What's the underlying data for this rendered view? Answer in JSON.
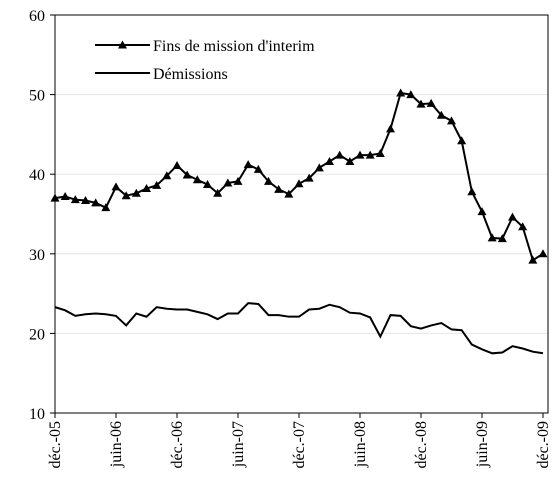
{
  "chart_data": {
    "type": "line",
    "categories": [
      "déc.-05",
      null,
      null,
      null,
      null,
      null,
      "juin-06",
      null,
      null,
      null,
      null,
      null,
      "déc.-06",
      null,
      null,
      null,
      null,
      null,
      "juin-07",
      null,
      null,
      null,
      null,
      null,
      "déc.-07",
      null,
      null,
      null,
      null,
      null,
      "juin-08",
      null,
      null,
      null,
      null,
      null,
      "déc.-08",
      null,
      null,
      null,
      null,
      null,
      "juin-09",
      null,
      null,
      null,
      null,
      null,
      "déc.-09"
    ],
    "series": [
      {
        "name": "Fins de mission d'interim",
        "color": "#000000",
        "marker": "triangle",
        "values": [
          37.0,
          37.2,
          36.8,
          36.7,
          36.4,
          35.8,
          38.4,
          37.3,
          37.6,
          38.2,
          38.6,
          39.8,
          41.1,
          39.9,
          39.3,
          38.7,
          37.6,
          38.9,
          39.1,
          41.2,
          40.6,
          39.1,
          38.1,
          37.5,
          38.8,
          39.5,
          40.8,
          41.6,
          42.4,
          41.6,
          42.4,
          42.4,
          42.6,
          45.7,
          50.2,
          50.0,
          48.8,
          48.9,
          47.4,
          46.7,
          44.2,
          37.8,
          35.3,
          32.0,
          31.9,
          34.6,
          33.4,
          29.2,
          30.0
        ]
      },
      {
        "name": "Démissions",
        "color": "#000000",
        "marker": "none",
        "values": [
          23.3,
          22.9,
          22.2,
          22.4,
          22.5,
          22.4,
          22.2,
          21.0,
          22.5,
          22.1,
          23.3,
          23.1,
          23.0,
          23.0,
          22.7,
          22.4,
          21.8,
          22.5,
          22.5,
          23.8,
          23.7,
          22.3,
          22.3,
          22.1,
          22.1,
          23.0,
          23.1,
          23.6,
          23.3,
          22.6,
          22.5,
          22.0,
          19.6,
          22.3,
          22.2,
          20.9,
          20.6,
          21.0,
          21.3,
          20.5,
          20.4,
          18.6,
          18.0,
          17.5,
          17.6,
          18.4,
          18.1,
          17.7,
          17.5
        ]
      }
    ],
    "ylim": [
      10,
      60
    ],
    "yticks": [
      10,
      20,
      30,
      40,
      50,
      60
    ],
    "grid": true,
    "legend": "top-left"
  }
}
